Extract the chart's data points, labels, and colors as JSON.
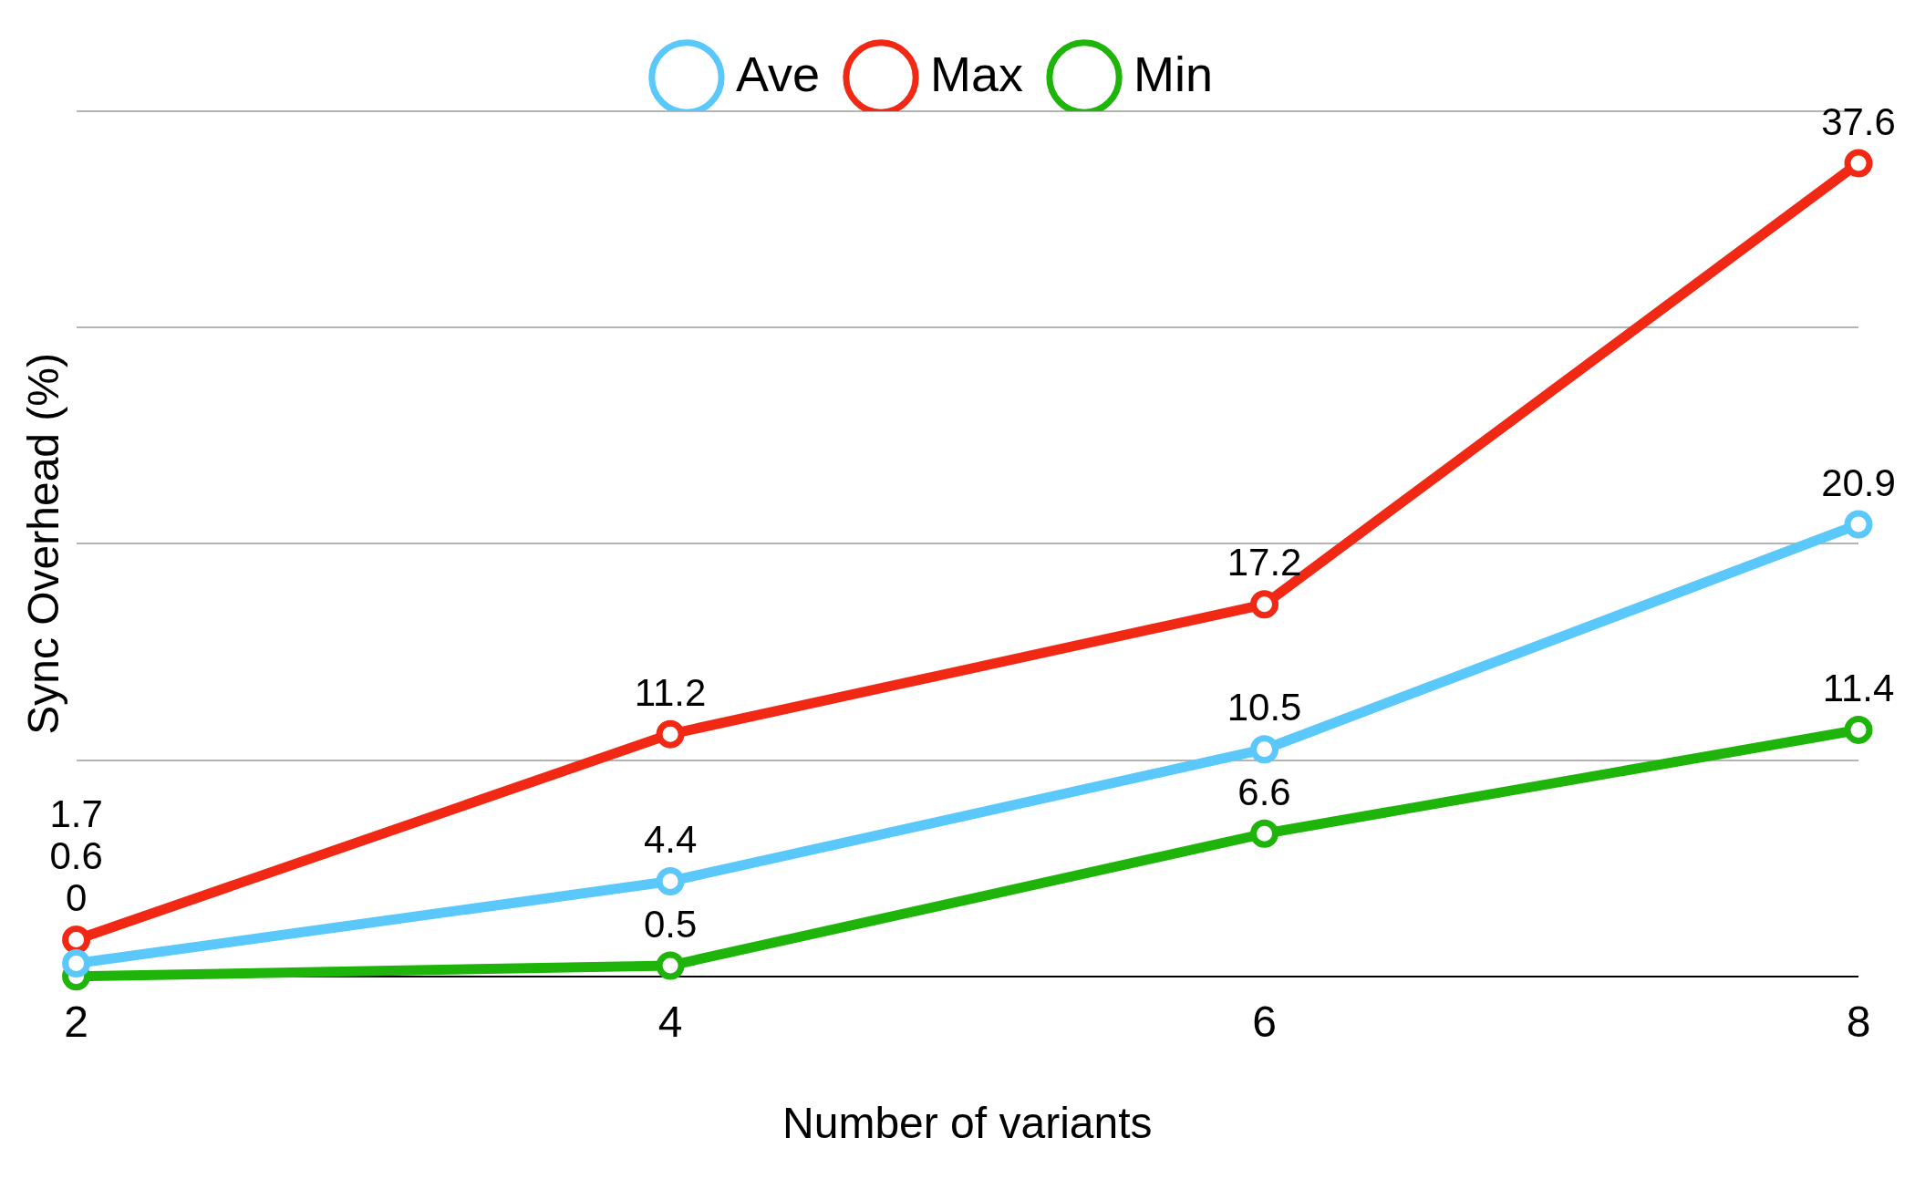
{
  "chart_data": {
    "type": "line",
    "xlabel": "Number of variants",
    "ylabel": "Sync Overhead (%)",
    "categories": [
      "2",
      "4",
      "6",
      "8"
    ],
    "series": [
      {
        "name": "Ave",
        "color": "#5ac8fa",
        "values": [
          0.6,
          4.4,
          10.5,
          20.9
        ]
      },
      {
        "name": "Max",
        "color": "#f02814",
        "values": [
          1.7,
          11.2,
          17.2,
          37.6
        ]
      },
      {
        "name": "Min",
        "color": "#1eb40a",
        "values": [
          0,
          0.5,
          6.6,
          11.4
        ]
      }
    ],
    "ylim": [
      0,
      40
    ],
    "yticks": [
      {
        "value": 0,
        "label": null
      },
      {
        "value": 10,
        "label": null
      },
      {
        "value": 20,
        "label": null
      },
      {
        "value": 30,
        "label": null
      },
      {
        "value": 40,
        "label": null
      }
    ],
    "tick_labels": "x",
    "grid": "y",
    "legend": "top",
    "marker": "circle",
    "line_style": "solid",
    "data_labels": true
  }
}
